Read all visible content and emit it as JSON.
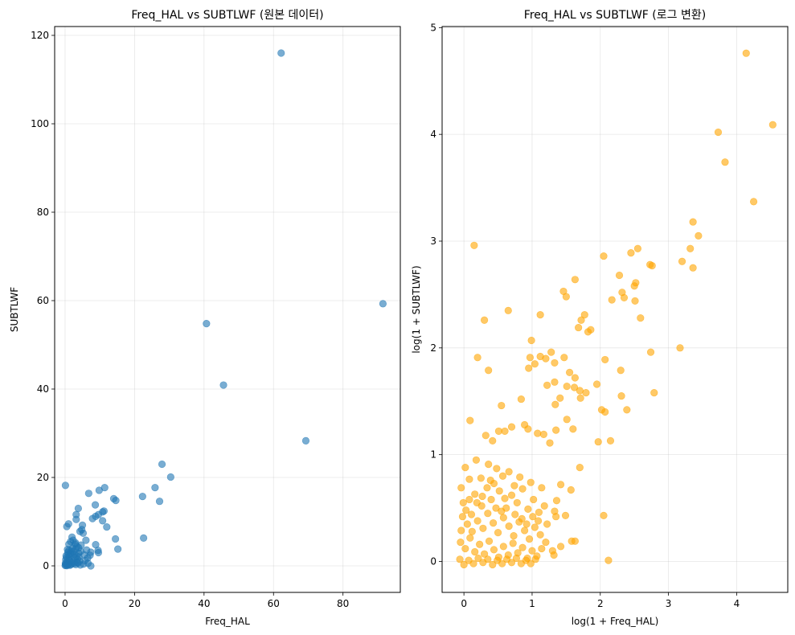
{
  "chart_data": [
    {
      "type": "scatter",
      "title": "Freq_HAL vs SUBTLWF (원본 데이터)",
      "xlabel": "Freq_HAL",
      "ylabel": "SUBTLWF",
      "xlim": [
        -3,
        96.5
      ],
      "ylim": [
        -6,
        122
      ],
      "xticks": [
        0,
        20,
        40,
        60,
        80
      ],
      "yticks": [
        0,
        20,
        40,
        60,
        80,
        100,
        120
      ],
      "grid": true,
      "color": "#1f77b4",
      "alpha": 0.6,
      "points": [
        [
          62.2,
          116.0
        ],
        [
          91.5,
          59.3
        ],
        [
          40.7,
          54.8
        ],
        [
          45.6,
          40.9
        ],
        [
          69.3,
          28.3
        ],
        [
          27.9,
          23.0
        ],
        [
          30.4,
          20.1
        ],
        [
          22.3,
          15.7
        ],
        [
          25.9,
          17.7
        ],
        [
          27.2,
          14.6
        ],
        [
          22.6,
          6.3
        ],
        [
          11.4,
          17.7
        ],
        [
          9.8,
          17.1
        ],
        [
          6.8,
          16.4
        ],
        [
          0.1,
          18.2
        ],
        [
          14.0,
          15.2
        ],
        [
          14.6,
          14.8
        ],
        [
          8.7,
          13.8
        ],
        [
          3.8,
          13.0
        ],
        [
          11.2,
          12.4
        ],
        [
          10.8,
          12.2
        ],
        [
          9.6,
          11.6
        ],
        [
          8.8,
          11.2
        ],
        [
          3.2,
          11.6
        ],
        [
          3.2,
          10.5
        ],
        [
          10.8,
          10.2
        ],
        [
          7.9,
          10.7
        ],
        [
          12.0,
          8.8
        ],
        [
          5.0,
          9.2
        ],
        [
          4.8,
          8.2
        ],
        [
          1.0,
          9.5
        ],
        [
          0.5,
          8.9
        ],
        [
          4.3,
          7.8
        ],
        [
          5.2,
          7.4
        ],
        [
          2.0,
          6.5
        ],
        [
          14.5,
          6.1
        ],
        [
          15.2,
          3.8
        ],
        [
          8.8,
          4.8
        ],
        [
          9.5,
          3.5
        ],
        [
          9.6,
          3.0
        ],
        [
          7.4,
          3.1
        ],
        [
          6.0,
          5.8
        ],
        [
          7.2,
          2.4
        ],
        [
          6.5,
          1.8
        ],
        [
          6.6,
          0.6
        ],
        [
          7.4,
          0.0
        ],
        [
          3.0,
          5.2
        ],
        [
          4.6,
          4.7
        ],
        [
          1.1,
          4.9
        ],
        [
          0.8,
          3.1
        ],
        [
          0.3,
          2.3
        ],
        [
          0.2,
          1.4
        ],
        [
          0.1,
          0.6
        ],
        [
          0.05,
          0.1
        ],
        [
          0.3,
          0.4
        ],
        [
          0.6,
          0.9
        ],
        [
          0.9,
          1.6
        ],
        [
          1.2,
          2.1
        ],
        [
          1.5,
          2.8
        ],
        [
          1.8,
          3.4
        ],
        [
          2.1,
          4.0
        ],
        [
          2.4,
          3.2
        ],
        [
          2.7,
          2.6
        ],
        [
          3.0,
          3.8
        ],
        [
          3.3,
          2.2
        ],
        [
          3.6,
          1.5
        ],
        [
          3.9,
          2.9
        ],
        [
          4.2,
          1.1
        ],
        [
          4.5,
          3.3
        ],
        [
          2.2,
          1.0
        ],
        [
          2.5,
          0.5
        ],
        [
          1.7,
          0.3
        ],
        [
          1.3,
          1.2
        ],
        [
          0.8,
          0.2
        ],
        [
          0.4,
          1.9
        ],
        [
          1.9,
          2.5
        ],
        [
          2.8,
          1.8
        ],
        [
          3.5,
          0.8
        ],
        [
          4.0,
          2.0
        ],
        [
          5.5,
          2.5
        ],
        [
          5.8,
          1.2
        ],
        [
          6.2,
          3.6
        ],
        [
          5.3,
          0.4
        ],
        [
          2.3,
          5.8
        ],
        [
          1.6,
          5.5
        ],
        [
          3.4,
          4.4
        ],
        [
          0.7,
          3.7
        ],
        [
          0.15,
          0.25
        ],
        [
          0.5,
          0.05
        ],
        [
          1.0,
          0.35
        ],
        [
          1.4,
          0.15
        ],
        [
          2.0,
          0.6
        ],
        [
          2.6,
          0.9
        ],
        [
          3.1,
          0.3
        ],
        [
          3.7,
          0.6
        ],
        [
          4.4,
          0.2
        ],
        [
          0.9,
          2.6
        ],
        [
          1.1,
          3.5
        ],
        [
          2.9,
          4.9
        ],
        [
          3.9,
          4.1
        ]
      ]
    },
    {
      "type": "scatter",
      "title": "Freq_HAL vs SUBTLWF (로그 변환)",
      "xlabel": "log(1 + Freq_HAL)",
      "ylabel": "log(1 + SUBTLWF)",
      "xlim": [
        -0.32,
        4.75
      ],
      "ylim": [
        -0.29,
        5.01
      ],
      "xticks": [
        0,
        1,
        2,
        3,
        4
      ],
      "yticks": [
        0,
        1,
        2,
        3,
        4,
        5
      ],
      "grid": true,
      "color": "#ffa500",
      "alpha": 0.6,
      "points": [
        [
          4.14,
          4.76
        ],
        [
          4.53,
          4.09
        ],
        [
          3.73,
          4.02
        ],
        [
          3.83,
          3.74
        ],
        [
          4.25,
          3.37
        ],
        [
          3.36,
          3.18
        ],
        [
          3.44,
          3.05
        ],
        [
          3.32,
          2.93
        ],
        [
          3.2,
          2.81
        ],
        [
          3.36,
          2.75
        ],
        [
          2.73,
          2.78
        ],
        [
          2.76,
          2.77
        ],
        [
          2.55,
          2.93
        ],
        [
          2.45,
          2.89
        ],
        [
          2.05,
          2.86
        ],
        [
          0.15,
          2.96
        ],
        [
          3.17,
          2.0
        ],
        [
          2.79,
          1.58
        ],
        [
          2.74,
          1.96
        ],
        [
          1.63,
          2.64
        ],
        [
          1.46,
          2.53
        ],
        [
          1.5,
          2.48
        ],
        [
          2.32,
          2.52
        ],
        [
          2.35,
          2.47
        ],
        [
          2.5,
          2.58
        ],
        [
          2.52,
          2.61
        ],
        [
          2.17,
          2.45
        ],
        [
          2.28,
          2.68
        ],
        [
          2.51,
          2.44
        ],
        [
          2.59,
          2.28
        ],
        [
          0.65,
          2.35
        ],
        [
          1.12,
          2.31
        ],
        [
          1.77,
          2.31
        ],
        [
          1.72,
          2.26
        ],
        [
          1.82,
          2.15
        ],
        [
          1.86,
          2.17
        ],
        [
          0.3,
          2.26
        ],
        [
          1.68,
          2.19
        ],
        [
          0.99,
          2.07
        ],
        [
          1.28,
          1.96
        ],
        [
          1.12,
          1.92
        ],
        [
          1.47,
          1.91
        ],
        [
          0.2,
          1.91
        ],
        [
          0.36,
          1.79
        ],
        [
          2.07,
          1.89
        ],
        [
          2.3,
          1.79
        ],
        [
          0.97,
          1.91
        ],
        [
          0.95,
          1.81
        ],
        [
          1.04,
          1.85
        ],
        [
          1.2,
          1.9
        ],
        [
          1.33,
          1.86
        ],
        [
          1.55,
          1.77
        ],
        [
          1.63,
          1.72
        ],
        [
          1.33,
          1.68
        ],
        [
          1.22,
          1.65
        ],
        [
          1.62,
          1.63
        ],
        [
          1.7,
          1.6
        ],
        [
          1.79,
          1.58
        ],
        [
          1.95,
          1.66
        ],
        [
          2.31,
          1.55
        ],
        [
          2.39,
          1.42
        ],
        [
          1.51,
          1.64
        ],
        [
          1.71,
          1.53
        ],
        [
          1.41,
          1.53
        ],
        [
          0.84,
          1.52
        ],
        [
          1.34,
          1.47
        ],
        [
          2.02,
          1.42
        ],
        [
          2.07,
          1.4
        ],
        [
          1.97,
          1.12
        ],
        [
          2.15,
          1.13
        ],
        [
          1.6,
          1.24
        ],
        [
          1.35,
          1.23
        ],
        [
          0.55,
          1.46
        ],
        [
          0.09,
          1.32
        ],
        [
          1.51,
          1.33
        ],
        [
          1.08,
          1.2
        ],
        [
          1.17,
          1.19
        ],
        [
          0.94,
          1.24
        ],
        [
          0.89,
          1.28
        ],
        [
          0.7,
          1.26
        ],
        [
          0.6,
          1.22
        ],
        [
          0.32,
          1.18
        ],
        [
          0.51,
          1.22
        ],
        [
          0.42,
          1.13
        ],
        [
          1.26,
          1.11
        ],
        [
          1.7,
          0.88
        ],
        [
          1.57,
          0.67
        ],
        [
          1.42,
          0.72
        ],
        [
          1.36,
          0.57
        ],
        [
          1.33,
          0.47
        ],
        [
          1.49,
          0.43
        ],
        [
          1.63,
          0.19
        ],
        [
          1.58,
          0.19
        ],
        [
          1.42,
          0.14
        ],
        [
          1.3,
          0.1
        ],
        [
          1.32,
          0.06
        ],
        [
          2.05,
          0.43
        ],
        [
          2.12,
          0.01
        ],
        [
          1.35,
          0.42
        ],
        [
          1.22,
          0.35
        ],
        [
          0.02,
          0.88
        ],
        [
          -0.04,
          0.69
        ],
        [
          0.08,
          0.58
        ],
        [
          0.16,
          0.63
        ],
        [
          0.26,
          0.52
        ],
        [
          0.34,
          0.69
        ],
        [
          0.44,
          0.73
        ],
        [
          0.52,
          0.66
        ],
        [
          0.6,
          0.59
        ],
        [
          0.7,
          0.62
        ],
        [
          0.78,
          0.55
        ],
        [
          0.86,
          0.68
        ],
        [
          0.94,
          0.49
        ],
        [
          1.02,
          0.58
        ],
        [
          1.1,
          0.46
        ],
        [
          1.18,
          0.52
        ],
        [
          0.18,
          0.95
        ],
        [
          0.36,
          0.91
        ],
        [
          0.48,
          0.87
        ],
        [
          0.66,
          0.84
        ],
        [
          0.82,
          0.79
        ],
        [
          0.98,
          0.74
        ],
        [
          1.14,
          0.69
        ],
        [
          -0.02,
          0.42
        ],
        [
          0.05,
          0.35
        ],
        [
          0.12,
          0.28
        ],
        [
          0.2,
          0.38
        ],
        [
          0.28,
          0.31
        ],
        [
          0.35,
          0.45
        ],
        [
          0.43,
          0.36
        ],
        [
          0.5,
          0.27
        ],
        [
          0.58,
          0.41
        ],
        [
          0.66,
          0.33
        ],
        [
          0.73,
          0.24
        ],
        [
          0.81,
          0.37
        ],
        [
          0.89,
          0.29
        ],
        [
          0.96,
          0.21
        ],
        [
          1.04,
          0.32
        ],
        [
          1.12,
          0.25
        ],
        [
          1.2,
          0.18
        ],
        [
          -0.05,
          0.18
        ],
        [
          0.02,
          0.12
        ],
        [
          0.09,
          0.22
        ],
        [
          0.16,
          0.09
        ],
        [
          0.23,
          0.16
        ],
        [
          0.3,
          0.07
        ],
        [
          0.37,
          0.19
        ],
        [
          0.44,
          0.11
        ],
        [
          0.51,
          0.04
        ],
        [
          0.58,
          0.14
        ],
        [
          0.65,
          0.06
        ],
        [
          0.72,
          0.17
        ],
        [
          0.79,
          0.08
        ],
        [
          0.86,
          0.13
        ],
        [
          0.93,
          0.03
        ],
        [
          1.0,
          0.1
        ],
        [
          1.07,
          0.05
        ],
        [
          1.14,
          0.12
        ],
        [
          -0.06,
          0.02
        ],
        [
          0.0,
          -0.03
        ],
        [
          0.07,
          0.01
        ],
        [
          0.14,
          -0.02
        ],
        [
          0.21,
          0.03
        ],
        [
          0.28,
          -0.01
        ],
        [
          0.35,
          0.02
        ],
        [
          0.42,
          -0.03
        ],
        [
          0.49,
          0.01
        ],
        [
          0.56,
          -0.02
        ],
        [
          0.63,
          0.02
        ],
        [
          0.7,
          -0.01
        ],
        [
          0.77,
          0.03
        ],
        [
          0.84,
          -0.02
        ],
        [
          0.91,
          0.01
        ],
        [
          0.98,
          -0.02
        ],
        [
          1.05,
          0.02
        ],
        [
          -0.04,
          0.29
        ],
        [
          0.03,
          0.48
        ],
        [
          0.11,
          0.44
        ],
        [
          0.19,
          0.55
        ],
        [
          0.27,
          0.61
        ],
        [
          0.4,
          0.58
        ],
        [
          0.47,
          0.5
        ],
        [
          0.55,
          0.47
        ],
        [
          0.62,
          0.5
        ],
        [
          0.75,
          0.44
        ],
        [
          0.85,
          0.4
        ],
        [
          0.92,
          0.35
        ],
        [
          1.01,
          0.42
        ],
        [
          1.09,
          0.38
        ],
        [
          0.25,
          0.78
        ],
        [
          0.39,
          0.76
        ],
        [
          0.57,
          0.8
        ],
        [
          0.74,
          0.71
        ],
        [
          0.08,
          0.77
        ],
        [
          -0.01,
          0.55
        ]
      ]
    }
  ]
}
